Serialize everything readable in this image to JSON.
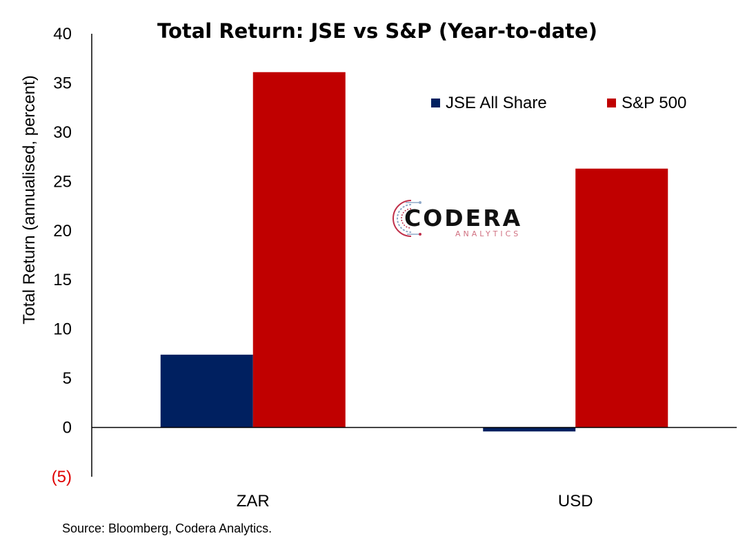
{
  "chart_data": {
    "type": "bar",
    "title": "Total Return: JSE vs S&P (Year-to-date)",
    "ylabel": "Total Return (annualised, percent)",
    "xlabel": "",
    "categories": [
      "ZAR",
      "USD"
    ],
    "series": [
      {
        "name": "JSE All Share",
        "values": [
          7.4,
          -0.4
        ],
        "color": "#002060"
      },
      {
        "name": "S&P 500",
        "values": [
          36.1,
          26.3
        ],
        "color": "#c00000"
      }
    ],
    "ylim": [
      -5,
      40
    ],
    "yticks": [
      40,
      35,
      30,
      25,
      20,
      15,
      10,
      5,
      0,
      -5
    ],
    "ytick_labels": [
      "40",
      "35",
      "30",
      "25",
      "20",
      "15",
      "10",
      "5",
      "0",
      "(5)"
    ],
    "negative_tick_color": "#e00000",
    "legend_position": "top-right",
    "grid": false
  },
  "logo": {
    "name": "CODERA",
    "subtitle": "ANALYTICS"
  },
  "source": "Source: Bloomberg, Codera Analytics."
}
